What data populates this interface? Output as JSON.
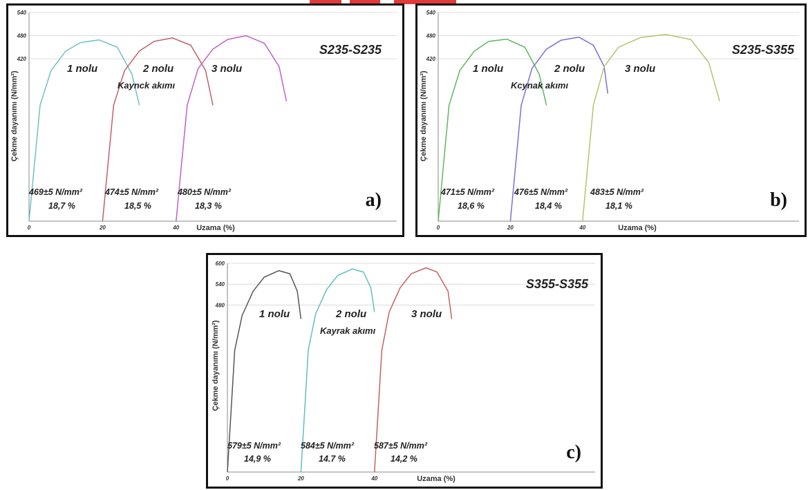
{
  "chart_data": [
    {
      "type": "line",
      "panel": "a)",
      "title": "S235-S235",
      "xlabel": "Uzama (%)",
      "ylabel": "Çekme dayanımı (N/mm²)",
      "x_ticks": [
        "0",
        "20",
        "40"
      ],
      "y_ticks": [
        "420",
        "480",
        "540"
      ],
      "xlim": [
        0,
        100
      ],
      "ylim": [
        0,
        540
      ],
      "grid": "horizontal",
      "series": [
        {
          "name": "1 nolu",
          "color": "#6fc0c2",
          "x": [
            0,
            3,
            6,
            10,
            14,
            19,
            24,
            28,
            30
          ],
          "y": [
            0,
            300,
            390,
            440,
            462,
            469,
            450,
            380,
            300
          ],
          "strength": "469±5 N/mm²",
          "elongation": "18,7 %"
        },
        {
          "name": "2 nolu",
          "color": "#c0606a",
          "x": [
            20,
            23,
            26,
            30,
            34,
            39,
            44,
            48,
            50
          ],
          "y": [
            0,
            300,
            390,
            440,
            465,
            474,
            455,
            390,
            300
          ],
          "strength": "474±5 N/mm²",
          "elongation": "18,5 %"
        },
        {
          "name": "3 nolu",
          "color": "#c060c8",
          "x": [
            40,
            43,
            46,
            50,
            54,
            59,
            64,
            68,
            70
          ],
          "y": [
            0,
            300,
            395,
            445,
            470,
            480,
            460,
            400,
            310
          ],
          "strength": "480±5 N/mm²",
          "elongation": "18,3 %"
        }
      ],
      "annotations": [
        "Kaynck akımı"
      ]
    },
    {
      "type": "line",
      "panel": "b)",
      "title": "S235-S355",
      "xlabel": "Uzama (%)",
      "ylabel": "Çekme dayanımı (N/mm²)",
      "x_ticks": [
        "0",
        "20",
        "40"
      ],
      "y_ticks": [
        "420",
        "480",
        "540"
      ],
      "xlim": [
        0,
        100
      ],
      "ylim": [
        0,
        540
      ],
      "grid": "horizontal",
      "series": [
        {
          "name": "1 nolu",
          "color": "#5cb85c",
          "x": [
            0,
            3,
            6,
            10,
            14,
            19,
            24,
            28,
            30
          ],
          "y": [
            0,
            300,
            390,
            440,
            465,
            471,
            450,
            380,
            300
          ],
          "strength": "471±5 N/mm²",
          "elongation": "18,6 %"
        },
        {
          "name": "2 nolu",
          "color": "#7a6fd0",
          "x": [
            20,
            23,
            26,
            30,
            34,
            39,
            43,
            46,
            47
          ],
          "y": [
            0,
            300,
            395,
            445,
            468,
            476,
            455,
            400,
            330
          ],
          "strength": "476±5 N/mm²",
          "elongation": "18,4 %"
        },
        {
          "name": "3 nolu",
          "color": "#b5c46a",
          "x": [
            40,
            43,
            46,
            50,
            56,
            63,
            70,
            75,
            78
          ],
          "y": [
            0,
            300,
            400,
            450,
            475,
            483,
            470,
            410,
            310
          ],
          "strength": "483±5 N/mm²",
          "elongation": "18,1 %"
        }
      ],
      "annotations": [
        "Kcynak akımı"
      ]
    },
    {
      "type": "line",
      "panel": "c)",
      "title": "S355-S355",
      "xlabel": "Uzama (%)",
      "ylabel": "Çekme dayanımı (N/mm²)",
      "x_ticks": [
        "0",
        "20",
        "40"
      ],
      "y_ticks": [
        "480",
        "540",
        "600"
      ],
      "xlim": [
        0,
        100
      ],
      "ylim": [
        0,
        600
      ],
      "grid": "horizontal",
      "series": [
        {
          "name": "1 nolu",
          "color": "#555555",
          "x": [
            0,
            2,
            4,
            7,
            10,
            14,
            17,
            19,
            20
          ],
          "y": [
            0,
            350,
            450,
            520,
            560,
            579,
            570,
            520,
            440
          ],
          "strength": "579±5 N/mm²",
          "elongation": "14,9 %"
        },
        {
          "name": "2 nolu",
          "color": "#5fbfbf",
          "x": [
            20,
            22,
            24,
            27,
            30,
            34,
            37,
            39,
            40
          ],
          "y": [
            0,
            350,
            455,
            525,
            565,
            584,
            575,
            530,
            460
          ],
          "strength": "584±5 N/mm²",
          "elongation": "14.7 %"
        },
        {
          "name": "3 nolu",
          "color": "#c86060",
          "x": [
            40,
            42,
            44,
            47,
            50,
            54,
            57,
            60,
            61
          ],
          "y": [
            0,
            350,
            460,
            530,
            570,
            587,
            575,
            520,
            440
          ],
          "strength": "587±5 N/mm²",
          "elongation": "14,2 %"
        }
      ],
      "annotations": [
        "Kayrak akımı"
      ]
    }
  ]
}
